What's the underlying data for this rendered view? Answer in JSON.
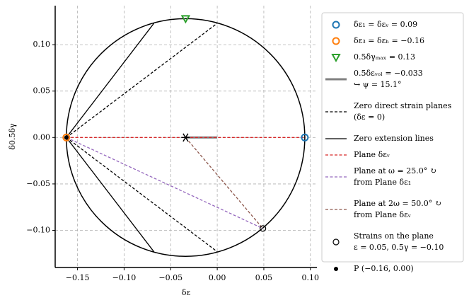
{
  "chart_data": {
    "type": "mohr",
    "xlabel": "δε",
    "ylabel": "δ0.5δγ",
    "xlim": [
      -0.174,
      0.107
    ],
    "ylim": [
      -0.14,
      0.142
    ],
    "xticks": [
      {
        "value": -0.15,
        "label": "−0.15"
      },
      {
        "value": -0.1,
        "label": "−0.10"
      },
      {
        "value": -0.05,
        "label": "−0.05"
      },
      {
        "value": 0,
        "label": "0.00"
      },
      {
        "value": 0.05,
        "label": "0.05"
      },
      {
        "value": 0.1,
        "label": "0.10"
      }
    ],
    "yticks": [
      {
        "value": -0.1,
        "label": "−0.10"
      },
      {
        "value": -0.05,
        "label": "−0.05"
      },
      {
        "value": 0,
        "label": "0.00"
      },
      {
        "value": 0.05,
        "label": "0.05"
      },
      {
        "value": 0.1,
        "label": "0.10"
      }
    ],
    "grid": true,
    "legend": "outside-right",
    "circle": {
      "center": [
        -0.034,
        0
      ],
      "radius": 0.128,
      "color": "#000000"
    },
    "series": [
      {
        "name": [
          "δε₁ = δεᵥ = 0.09"
        ],
        "color": "#1f77b4",
        "x": [
          0.094
        ],
        "values": [
          0
        ],
        "marker": "circle-open"
      },
      {
        "name": [
          "δε₃ = δεₕ = −0.16"
        ],
        "color": "#ff7f0e",
        "x": [
          -0.162
        ],
        "values": [
          0
        ],
        "marker": "circle-open"
      },
      {
        "name": [
          "0.5δγₘₐₓ = 0.13"
        ],
        "color": "#2ca02c",
        "x": [
          -0.034
        ],
        "values": [
          0.128
        ],
        "marker": "triangle-open"
      },
      {
        "name": [
          "0.5δεᵥₒₗ = −0.033",
          "↪ ψ = 15.1°"
        ],
        "color": "#808080",
        "x": [
          -0.034,
          0
        ],
        "values": [
          0,
          0
        ],
        "line": "solid",
        "width": 3
      },
      {
        "name": [
          "Zero direct strain planes",
          "(δε = 0)"
        ],
        "color": "#000000",
        "x": [
          -0.162,
          0,
          null,
          -0.162,
          0
        ],
        "values": [
          0,
          0.123,
          null,
          0,
          -0.123
        ],
        "line": "dashed",
        "width": 1.3
      },
      {
        "name": [
          "Zero extension lines"
        ],
        "color": "#000000",
        "x": [
          -0.162,
          -0.068,
          null,
          -0.162,
          -0.068
        ],
        "values": [
          0,
          0.123,
          null,
          0,
          -0.123
        ],
        "line": "solid",
        "width": 1.3
      },
      {
        "name": [
          "Plane δεᵥ"
        ],
        "color": "#d62728",
        "x": [
          -0.162,
          0.094
        ],
        "values": [
          0,
          0
        ],
        "line": "dashed",
        "width": 1.3
      },
      {
        "name": [
          "Plane at ω = 25.0° ↻",
          "from Plane δε₁"
        ],
        "color": "#9467bd",
        "x": [
          -0.162,
          0.049
        ],
        "values": [
          0,
          -0.098
        ],
        "line": "dashed",
        "width": 1.3
      },
      {
        "name": [
          "Plane at 2ω = 50.0° ↻",
          "from Plane δεᵥ"
        ],
        "color": "#8c564b",
        "x": [
          -0.034,
          0.049
        ],
        "values": [
          0,
          -0.098
        ],
        "line": "dashed",
        "width": 1.3
      },
      {
        "name": [
          "Strains on the plane",
          "ε = 0.05, 0.5γ = −0.10"
        ],
        "color": "#000000",
        "x": [
          0.049
        ],
        "values": [
          -0.098
        ],
        "marker": "circle-open-small"
      },
      {
        "name": [
          "P (−0.16, 0.00)"
        ],
        "color": "#000000",
        "x": [
          -0.162
        ],
        "values": [
          0
        ],
        "marker": "dot"
      },
      {
        "color": "#000000",
        "x": [
          -0.034
        ],
        "values": [
          0
        ],
        "marker": "asterisk"
      }
    ]
  }
}
